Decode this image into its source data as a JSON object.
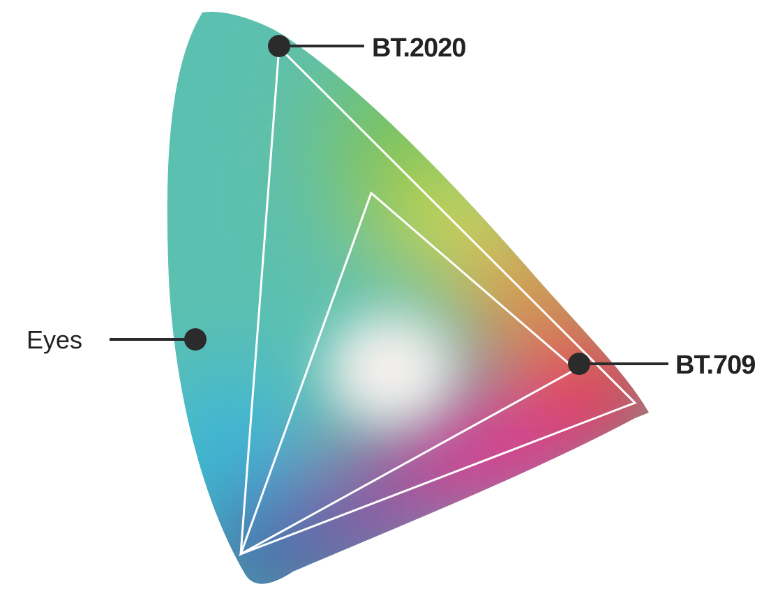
{
  "diagram": {
    "labels": {
      "bt2020": "BT.2020",
      "bt709": "BT.709",
      "eyes": "Eyes"
    }
  },
  "colors": {
    "label_line": "#2b2b2b",
    "marker": "#2b2b2b",
    "triangle_stroke": "#ffffff",
    "green": "#7cc242",
    "yellow": "#e3e04c",
    "orange": "#f08c3c",
    "red": "#ee2a3c",
    "magenta": "#e52e8c",
    "purple": "#8a4aa0",
    "blue": "#3a4ea0",
    "cyan": "#2fb4e0",
    "teal": "#5cc0b0",
    "white_point": "#f4f0ee"
  }
}
